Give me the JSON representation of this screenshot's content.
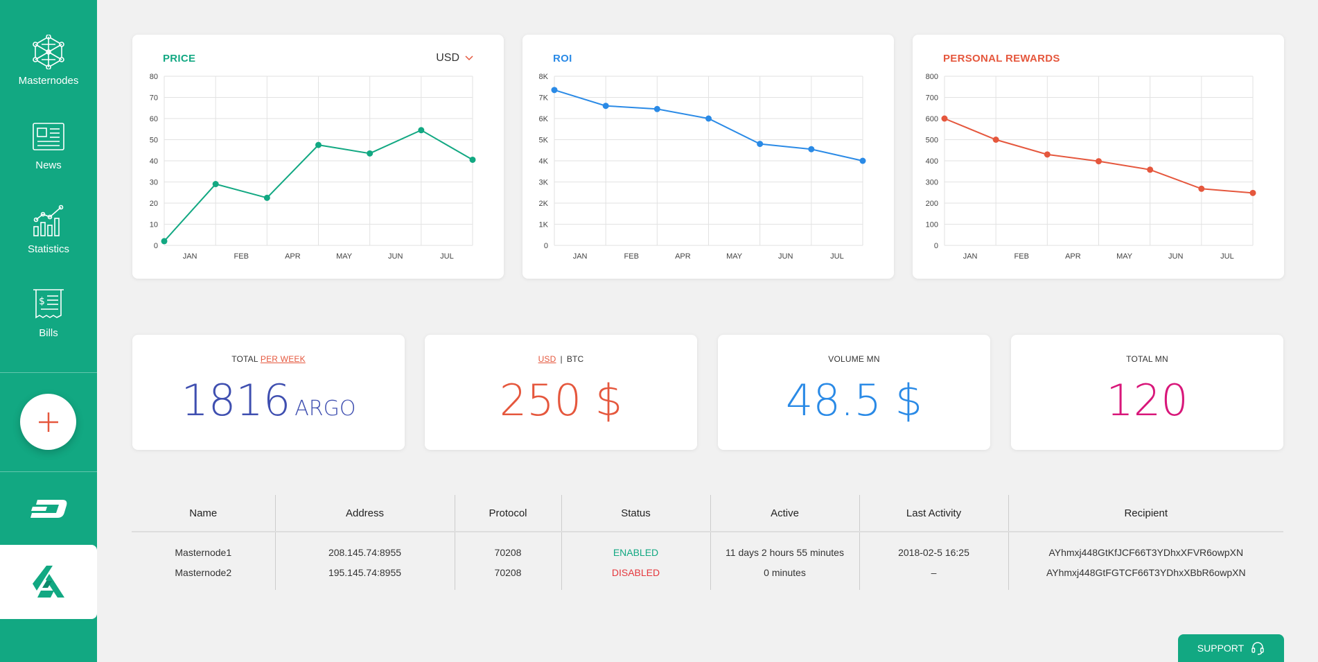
{
  "sidebar": {
    "items": [
      {
        "label": "Masternodes",
        "icon": "network-icon"
      },
      {
        "label": "News",
        "icon": "newspaper-icon"
      },
      {
        "label": "Statistics",
        "icon": "chart-icon"
      },
      {
        "label": "Bills",
        "icon": "bill-icon"
      }
    ],
    "add_label": "+"
  },
  "colors": {
    "brand": "#12a882",
    "price": "#12a882",
    "roi": "#2a8ae6",
    "rewards": "#e5573d",
    "argo": "#3f4fb0",
    "usd": "#e5573d",
    "volume": "#2a8ae6",
    "total": "#d8177a"
  },
  "currency": {
    "selected": "USD"
  },
  "chart_data": [
    {
      "type": "line",
      "title": "PRICE",
      "categories": [
        "JAN",
        "FEB",
        "APR",
        "MAY",
        "JUN",
        "JUL"
      ],
      "y_ticks": [
        "0",
        "10",
        "20",
        "30",
        "40",
        "50",
        "60",
        "70",
        "80"
      ],
      "ylim": [
        0,
        80
      ],
      "x": [
        0,
        1,
        2,
        3,
        4,
        5,
        6
      ],
      "values": [
        2,
        29,
        22.5,
        47.5,
        43.5,
        54.5,
        40.5
      ],
      "grid": true
    },
    {
      "type": "line",
      "title": "ROI",
      "categories": [
        "JAN",
        "FEB",
        "APR",
        "MAY",
        "JUN",
        "JUL"
      ],
      "y_ticks": [
        "0",
        "1K",
        "2K",
        "3K",
        "4K",
        "5K",
        "6K",
        "7K",
        "8K"
      ],
      "ylim": [
        0,
        8000
      ],
      "x": [
        0,
        1,
        2,
        3,
        4,
        5,
        6
      ],
      "values": [
        7350,
        6600,
        6450,
        6000,
        4800,
        4550,
        4000
      ],
      "grid": true
    },
    {
      "type": "line",
      "title": "PERSONAL REWARDS",
      "categories": [
        "JAN",
        "FEB",
        "APR",
        "MAY",
        "JUN",
        "JUL"
      ],
      "y_ticks": [
        "0",
        "100",
        "200",
        "300",
        "400",
        "500",
        "600",
        "700",
        "800"
      ],
      "ylim": [
        0,
        800
      ],
      "x": [
        0,
        1,
        2,
        3,
        4,
        5,
        6
      ],
      "values": [
        600,
        500,
        430,
        398,
        358,
        268,
        248
      ],
      "grid": true
    }
  ],
  "stats": {
    "total_per_week": {
      "label_a": "TOTAL",
      "label_b": "PER WEEK",
      "value": "1816",
      "unit": "ARGO"
    },
    "usd_btc": {
      "label_a": "USD",
      "separator": "|",
      "label_b": "BTC",
      "value": "250 $"
    },
    "volume_mn": {
      "label": "VOLUME MN",
      "value": "48.5 $"
    },
    "total_mn": {
      "label": "TOTAL MN",
      "value": "120"
    }
  },
  "table": {
    "columns": [
      "Name",
      "Address",
      "Protocol",
      "Status",
      "Active",
      "Last Activity",
      "Recipient"
    ],
    "rows": [
      {
        "name": "Masternode1",
        "address": "208.145.74:8955",
        "protocol": "70208",
        "status": "ENABLED",
        "status_color": "#12a882",
        "active": "11 days 2 hours 55 minutes",
        "last_activity": "2018-02-5 16:25",
        "recipient": "AYhmxj448GtKfJCF66T3YDhxXFVR6owpXN"
      },
      {
        "name": "Masternode2",
        "address": "195.145.74:8955",
        "protocol": "70208",
        "status": "DISABLED",
        "status_color": "#e5373d",
        "active": "0 minutes",
        "last_activity": "–",
        "recipient": "AYhmxj448GtFGTCF66T3YDhxXBbR6owpXN"
      }
    ]
  },
  "support": {
    "label": "SUPPORT",
    "icon": "headset-icon"
  }
}
